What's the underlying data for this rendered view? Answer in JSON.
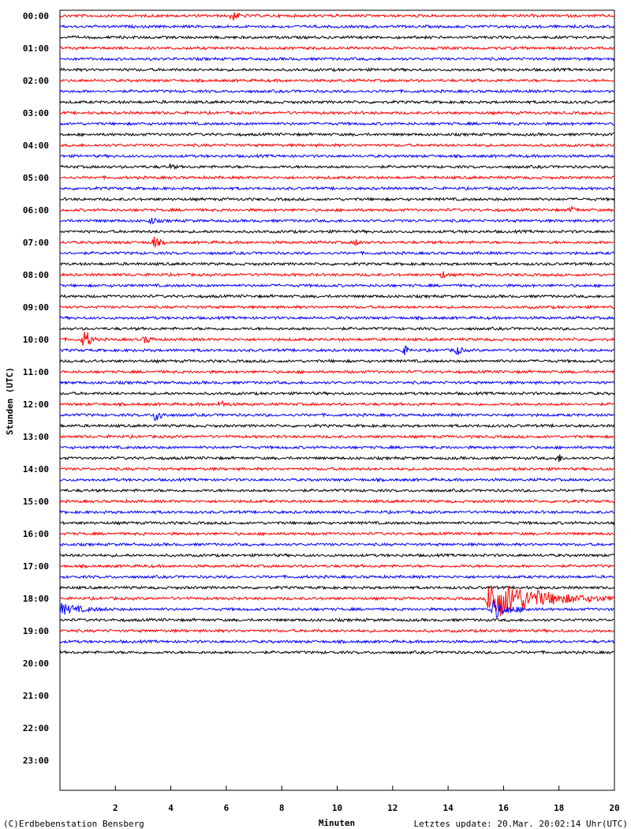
{
  "chart_data": {
    "type": "line",
    "title": "",
    "xlabel": "Minuten",
    "ylabel": "Stunden (UTC)",
    "xlim": [
      0,
      20
    ],
    "x_ticks": [
      "2",
      "4",
      "6",
      "8",
      "10",
      "12",
      "14",
      "16",
      "18",
      "20"
    ],
    "hour_labels": [
      "00:00",
      "01:00",
      "02:00",
      "03:00",
      "04:00",
      "05:00",
      "06:00",
      "07:00",
      "08:00",
      "09:00",
      "10:00",
      "11:00",
      "12:00",
      "13:00",
      "14:00",
      "15:00",
      "16:00",
      "17:00",
      "18:00",
      "19:00",
      "20:00",
      "21:00",
      "22:00",
      "23:00"
    ],
    "trace_colors": [
      "#ff0000",
      "#0000ff",
      "#000000"
    ],
    "traces_per_hour": 3,
    "trace_minutes": 20,
    "total_traces": 60,
    "events": [
      {
        "trace": 0,
        "minute": 6.2,
        "amplitude": 6,
        "duration": 0.6
      },
      {
        "trace": 14,
        "minute": 4.0,
        "amplitude": 3,
        "duration": 0.3
      },
      {
        "trace": 18,
        "minute": 18.5,
        "amplitude": 5,
        "duration": 0.3
      },
      {
        "trace": 19,
        "minute": 3.3,
        "amplitude": 4,
        "duration": 0.4
      },
      {
        "trace": 21,
        "minute": 3.4,
        "amplitude": 7,
        "duration": 0.5
      },
      {
        "trace": 21,
        "minute": 10.7,
        "amplitude": 4,
        "duration": 0.3
      },
      {
        "trace": 24,
        "minute": 13.8,
        "amplitude": 5,
        "duration": 0.3
      },
      {
        "trace": 30,
        "minute": 0.9,
        "amplitude": 14,
        "duration": 0.5
      },
      {
        "trace": 30,
        "minute": 3.1,
        "amplitude": 5,
        "duration": 0.4
      },
      {
        "trace": 31,
        "minute": 12.4,
        "amplitude": 6,
        "duration": 0.4
      },
      {
        "trace": 31,
        "minute": 14.3,
        "amplitude": 7,
        "duration": 0.4
      },
      {
        "trace": 36,
        "minute": 5.8,
        "amplitude": 4,
        "duration": 0.6
      },
      {
        "trace": 37,
        "minute": 3.5,
        "amplitude": 12,
        "duration": 0.4
      },
      {
        "trace": 41,
        "minute": 18.0,
        "amplitude": 5,
        "duration": 0.3
      },
      {
        "trace": 54,
        "minute": 15.5,
        "amplitude": 28,
        "duration": 4.5
      },
      {
        "trace": 55,
        "minute": 0.0,
        "amplitude": 7,
        "duration": 2.0
      },
      {
        "trace": 55,
        "minute": 15.6,
        "amplitude": 12,
        "duration": 1.6
      }
    ]
  },
  "footer": {
    "copyright": "(C)Erdbebenstation Bensberg",
    "last_update": "Letztes update: 20.Mar. 20:02:14 Uhr(UTC)"
  }
}
